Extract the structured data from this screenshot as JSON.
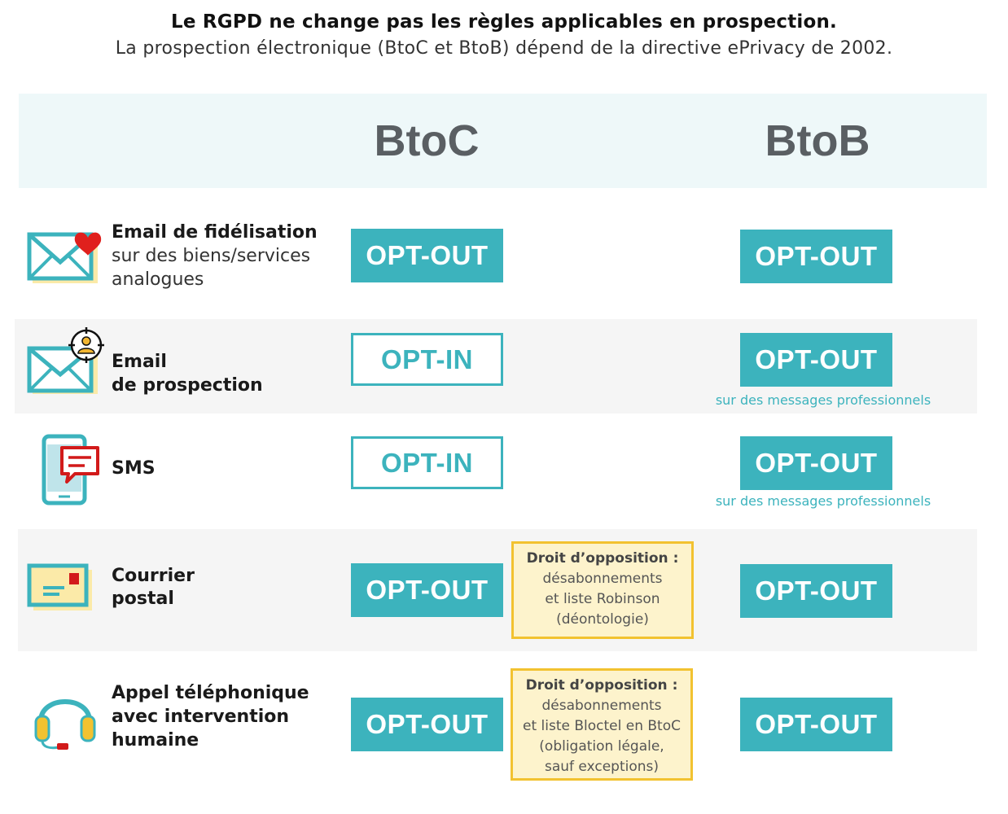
{
  "header": {
    "title": "Le RGPD ne change pas les règles applicables en prospection.",
    "subtitle": "La prospection électronique (BtoC et BtoB) dépend de la directive ePrivacy de 2002."
  },
  "columns": {
    "btoc": "BtoC",
    "btob": "BtoB"
  },
  "rows": [
    {
      "label_bold": "Email de fidélisation",
      "label_light_1": "sur des biens/services",
      "label_light_2": "analogues",
      "icon": "email-heart-icon",
      "btoc": "OPT-OUT",
      "btob": "OPT-OUT"
    },
    {
      "label_bold_1": "Email",
      "label_bold_2": "de prospection",
      "icon": "email-target-icon",
      "btoc": "OPT-IN",
      "btob": "OPT-OUT",
      "btob_note": "sur des messages professionnels"
    },
    {
      "label_bold": "SMS",
      "icon": "smartphone-message-icon",
      "btoc": "OPT-IN",
      "btob": "OPT-OUT",
      "btob_note": "sur des messages professionnels"
    },
    {
      "label_bold_1": "Courrier",
      "label_bold_2": "postal",
      "icon": "letter-icon",
      "btoc": "OPT-OUT",
      "btob": "OPT-OUT",
      "box": {
        "heading": "Droit  d’opposition :",
        "line1": "désabonnements",
        "line2": "et liste Robinson",
        "line3": "(déontologie)"
      }
    },
    {
      "label_bold_1": "Appel téléphonique",
      "label_bold_2": "avec intervention",
      "label_bold_3": "humaine",
      "icon": "headset-icon",
      "btoc": "OPT-OUT",
      "btob": "OPT-OUT",
      "box": {
        "heading": "Droit d’opposition :",
        "line1": "désabonnements",
        "line2": "et liste Bloctel en BtoC",
        "line3": "(obligation légale,",
        "line4": "sauf exceptions)"
      }
    }
  ],
  "colors": {
    "teal": "#3cb3bd",
    "header_band": "#eef8f9",
    "row_band": "#f5f5f5",
    "box_fill": "#fdf3cc",
    "box_border": "#f2c230",
    "heart": "#e0201d"
  }
}
